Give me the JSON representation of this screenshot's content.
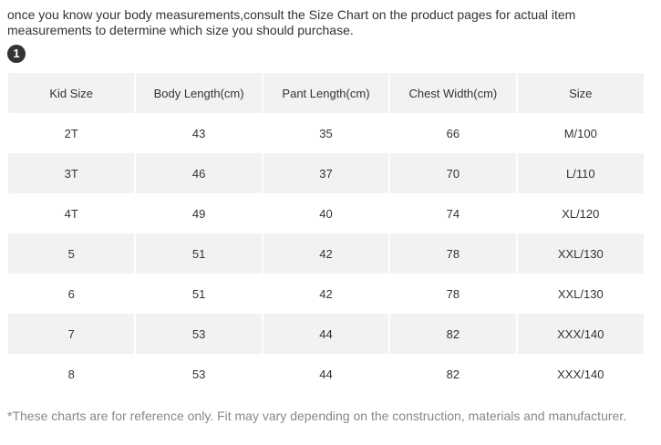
{
  "intro_text": "once you know your body measurements,consult the Size Chart on the product pages for actual item measurements to determine which size you should purchase.",
  "step_badge": "1",
  "table": {
    "headers": [
      "Kid Size",
      "Body Length(cm)",
      "Pant Length(cm)",
      "Chest Width(cm)",
      "Size"
    ],
    "rows": [
      [
        "2T",
        "43",
        "35",
        "66",
        "M/100"
      ],
      [
        "3T",
        "46",
        "37",
        "70",
        "L/110"
      ],
      [
        "4T",
        "49",
        "40",
        "74",
        "XL/120"
      ],
      [
        "5",
        "51",
        "42",
        "78",
        "XXL/130"
      ],
      [
        "6",
        "51",
        "42",
        "78",
        "XXL/130"
      ],
      [
        "7",
        "53",
        "44",
        "82",
        "XXX/140"
      ],
      [
        "8",
        "53",
        "44",
        "82",
        "XXX/140"
      ]
    ]
  },
  "footnote": "*These charts are for reference only. Fit may vary depending on the construction, materials and manufacturer.",
  "colors": {
    "text": "#333333",
    "row_shade": "#f2f2f2",
    "footnote": "#888888",
    "badge_bg": "#333333"
  }
}
